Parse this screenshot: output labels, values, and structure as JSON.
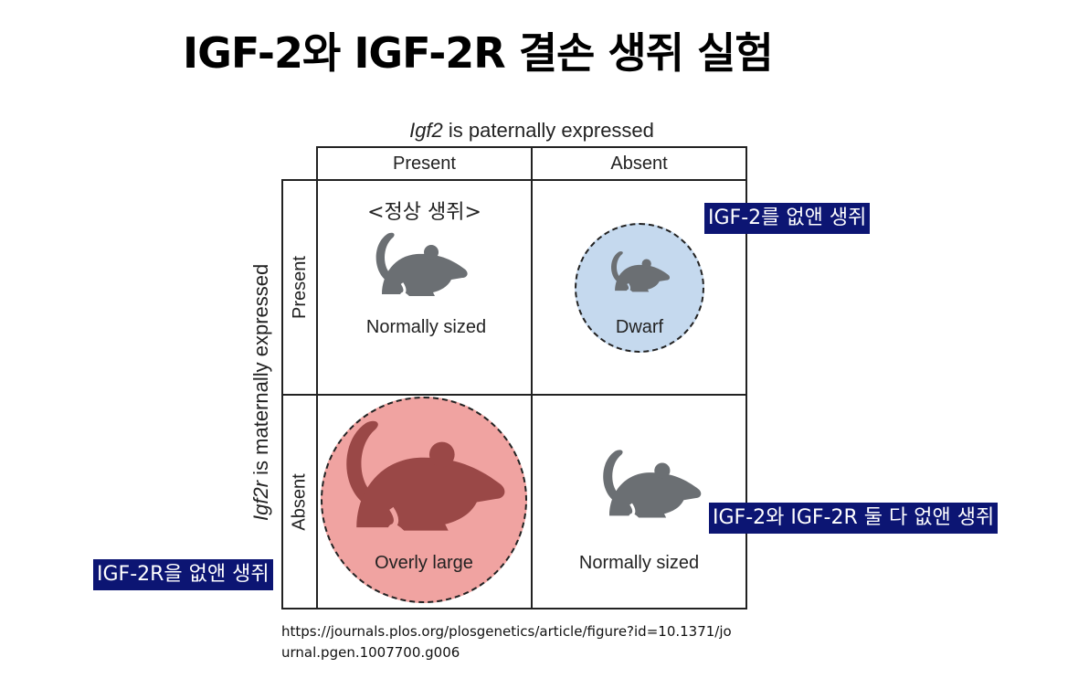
{
  "title": "IGF-2와 IGF-2R 결손 생쥐 실험",
  "diagram": {
    "top_axis": {
      "italic": "Igf2",
      "rest": " is paternally expressed"
    },
    "side_axis": {
      "italic": "Igf2r",
      "rest": " is maternally expressed"
    },
    "col_headers": [
      "Present",
      "Absent"
    ],
    "row_headers": [
      "Present",
      "Absent"
    ],
    "cells": {
      "present_present": {
        "note": "<정상 생쥐>",
        "label": "Normally sized",
        "icon": "mouse-icon",
        "color": "#6b6f73"
      },
      "present_absent": {
        "label": "Dwarf",
        "icon": "mouse-icon",
        "circle_color": "#c5d9ee",
        "color": "#6b6f73"
      },
      "absent_present": {
        "label": "Overly large",
        "icon": "mouse-icon",
        "circle_color": "#f0a3a1",
        "color": "#9a4847"
      },
      "absent_absent": {
        "label": "Normally sized",
        "icon": "mouse-icon",
        "color": "#6b6f73"
      }
    }
  },
  "tags": {
    "igf2_removed": "IGF-2를 없앤 생쥐",
    "both_removed": "IGF-2와 IGF-2R 둘 다 없앤 생쥐",
    "igf2r_removed": "IGF-2R을 없앤 생쥐"
  },
  "source": "https://journals.plos.org/plosgenetics/article/figure?id=10.1371/journal.pgen.1007700.g006",
  "colors": {
    "tag_bg": "#0c1573",
    "tag_text": "#ffffff"
  }
}
